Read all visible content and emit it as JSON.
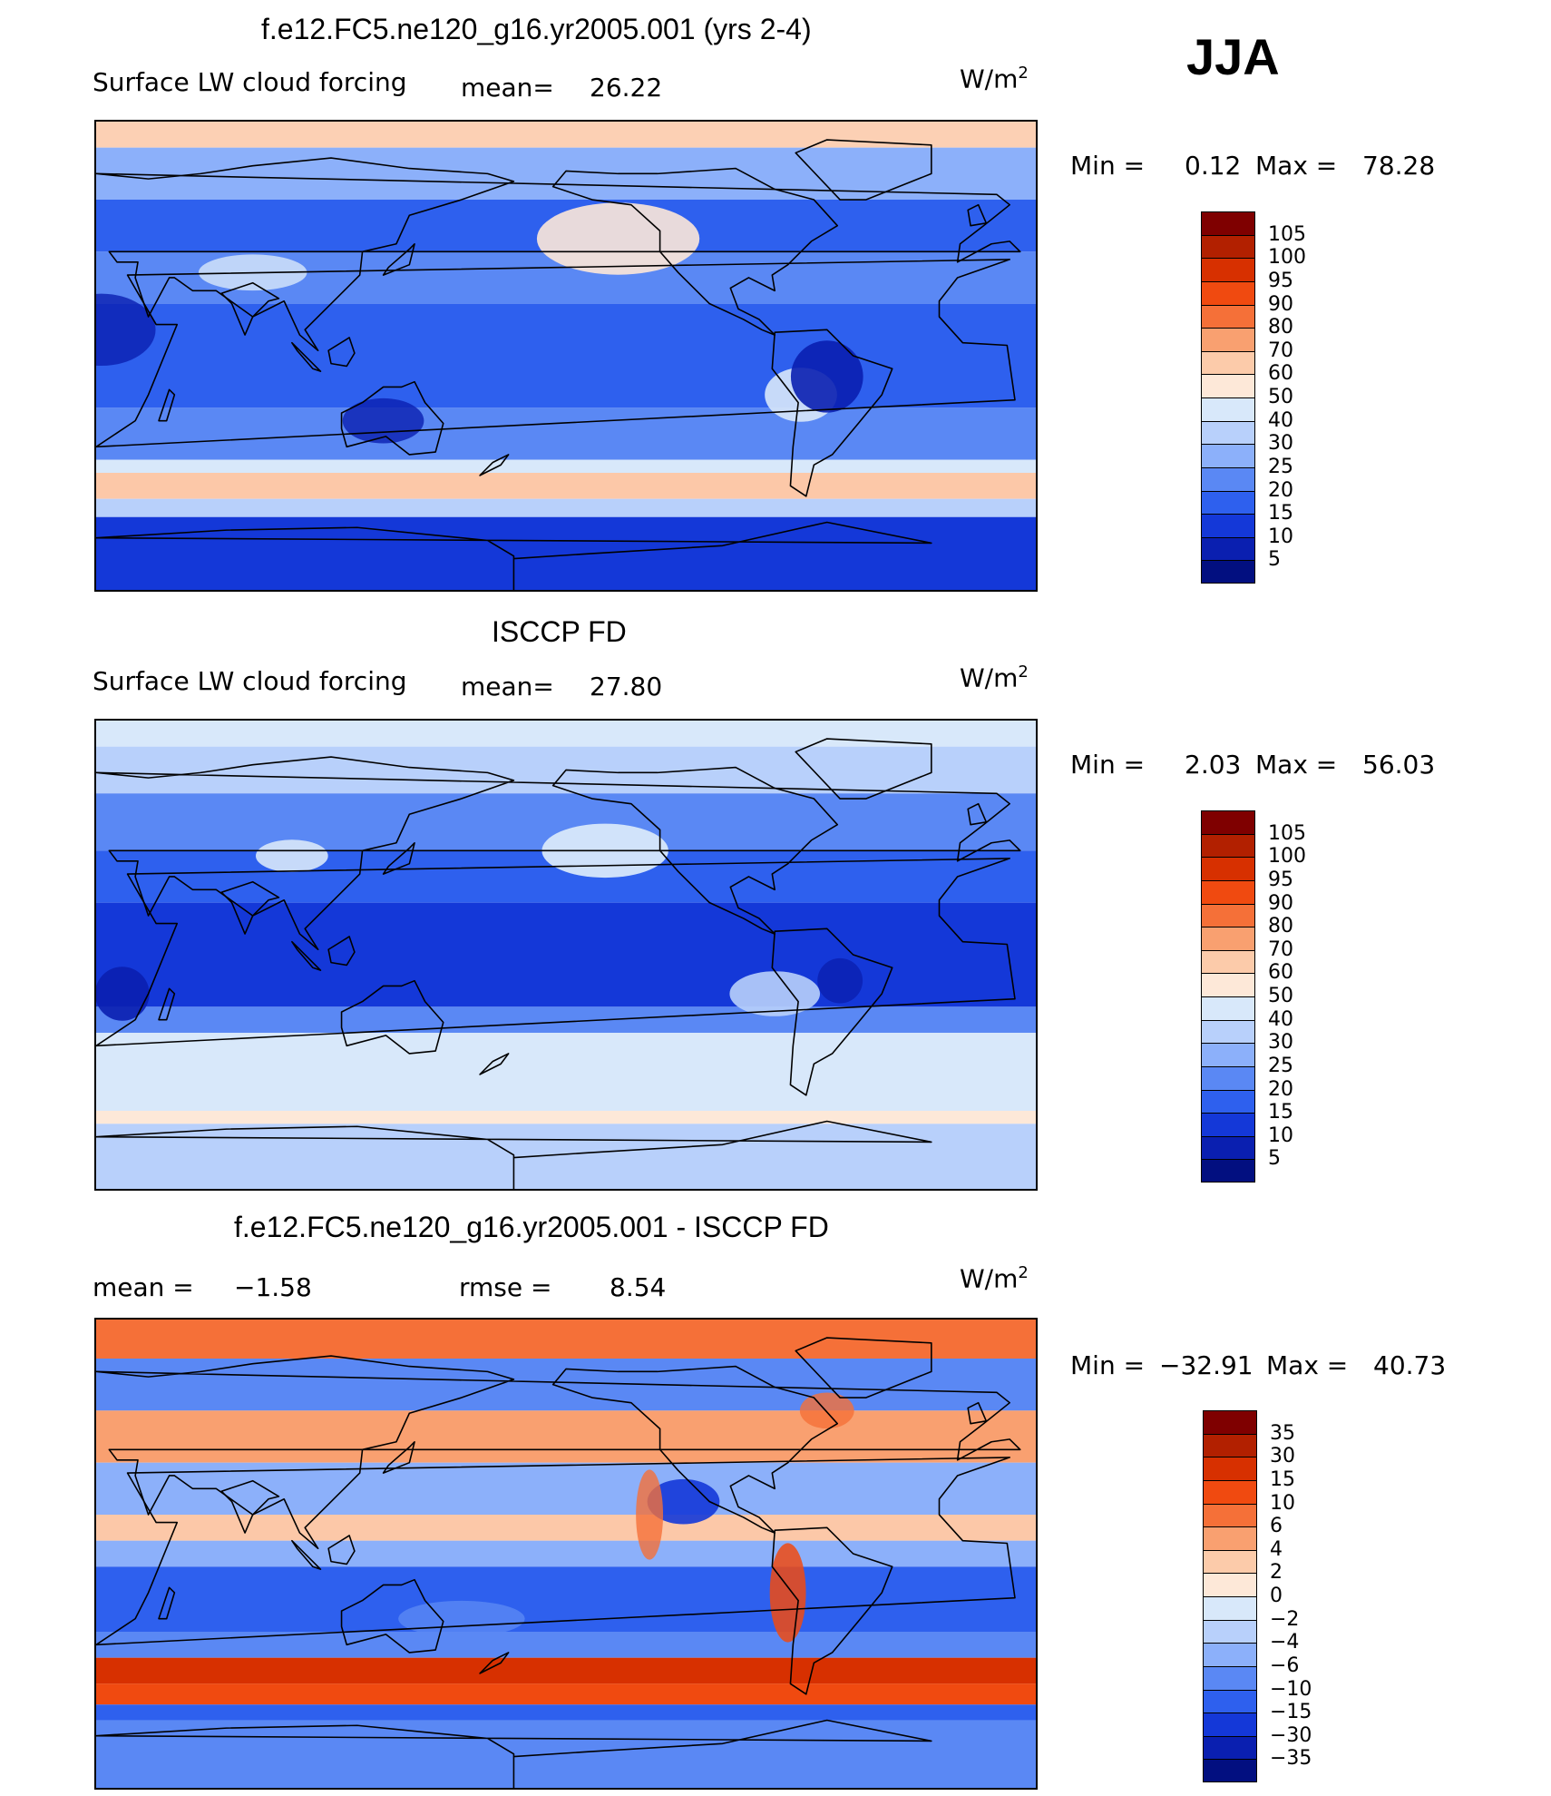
{
  "season": "JJA",
  "panels": [
    {
      "title": "f.e12.FC5.ne120_g16.yr2005.001 (yrs 2-4)",
      "left_label": "Surface LW cloud forcing",
      "stat1_label": "mean=",
      "stat1_value": "26.22",
      "stat2_label": "",
      "stat2_value": "",
      "units": "W/m",
      "units_sup": "2",
      "min_label": "Min =",
      "min_value": "0.12",
      "max_label": "Max =",
      "max_value": "78.28",
      "colorbar_ticks": [
        "105",
        "100",
        "95",
        "90",
        "80",
        "70",
        "60",
        "50",
        "40",
        "30",
        "25",
        "20",
        "15",
        "10",
        "5"
      ],
      "colorbar_colors": [
        "#7f0000",
        "#b22000",
        "#d73000",
        "#f04a10",
        "#f57038",
        "#f9a070",
        "#fccbaa",
        "#fde8d8",
        "#d8e8fa",
        "#b8d0fb",
        "#8cb0fa",
        "#5a88f4",
        "#2e60ee",
        "#1438d8",
        "#0a1fb0",
        "#020f80"
      ],
      "map_style": "model"
    },
    {
      "title": "ISCCP FD",
      "left_label": "Surface LW cloud forcing",
      "stat1_label": "mean=",
      "stat1_value": "27.80",
      "stat2_label": "",
      "stat2_value": "",
      "units": "W/m",
      "units_sup": "2",
      "min_label": "Min =",
      "min_value": "2.03",
      "max_label": "Max =",
      "max_value": "56.03",
      "colorbar_ticks": [
        "105",
        "100",
        "95",
        "90",
        "80",
        "70",
        "60",
        "50",
        "40",
        "30",
        "25",
        "20",
        "15",
        "10",
        "5"
      ],
      "colorbar_colors": [
        "#7f0000",
        "#b22000",
        "#d73000",
        "#f04a10",
        "#f57038",
        "#f9a070",
        "#fccbaa",
        "#fde8d8",
        "#d8e8fa",
        "#b8d0fb",
        "#8cb0fa",
        "#5a88f4",
        "#2e60ee",
        "#1438d8",
        "#0a1fb0",
        "#020f80"
      ],
      "map_style": "obs"
    },
    {
      "title": "f.e12.FC5.ne120_g16.yr2005.001 - ISCCP FD",
      "left_label": "",
      "stat1_label": "mean =",
      "stat1_value": "−1.58",
      "stat2_label": "rmse =",
      "stat2_value": "8.54",
      "units": "W/m",
      "units_sup": "2",
      "min_label": "Min =",
      "min_value": "−32.91",
      "max_label": "Max =",
      "max_value": "40.73",
      "colorbar_ticks": [
        "35",
        "30",
        "15",
        "10",
        "6",
        "4",
        "2",
        "0",
        "−2",
        "−4",
        "−6",
        "−10",
        "−15",
        "−30",
        "−35"
      ],
      "colorbar_colors": [
        "#7f0000",
        "#b22000",
        "#d73000",
        "#f04a10",
        "#f57038",
        "#f9a070",
        "#fccbaa",
        "#fde8d8",
        "#d8e8fa",
        "#b8d0fb",
        "#8cb0fa",
        "#5a88f4",
        "#2e60ee",
        "#1438d8",
        "#0a1fb0",
        "#020f80"
      ],
      "map_style": "diff"
    }
  ]
}
